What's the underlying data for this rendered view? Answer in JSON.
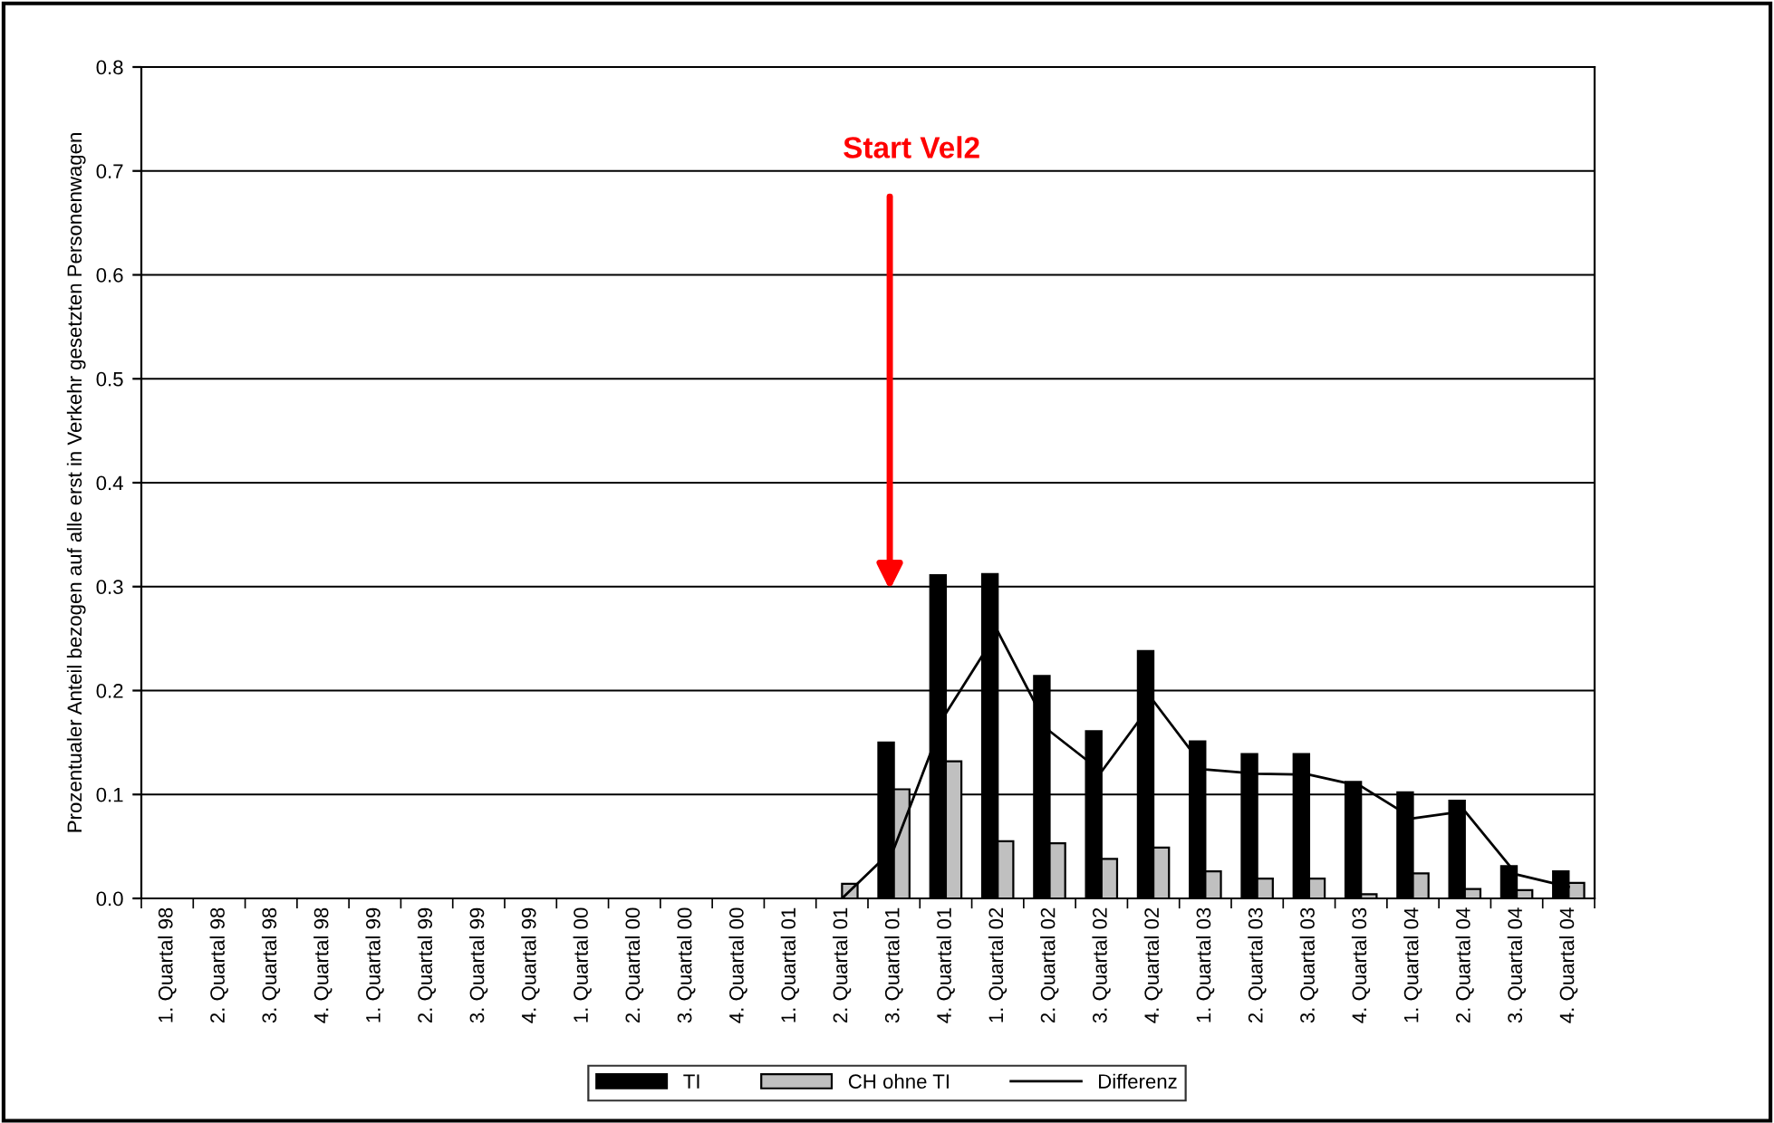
{
  "chart_data": {
    "type": "bar",
    "ylabel": "Prozentualer Anteil bezogen auf alle erst in Verkehr gesetzten Personenwagen",
    "categories": [
      "1. Quartal 98",
      "2. Quartal 98",
      "3. Quartal 98",
      "4. Quartal 98",
      "1. Quartal 99",
      "2. Quartal 99",
      "3. Quartal 99",
      "4. Quartal 99",
      "1. Quartal 00",
      "2. Quartal 00",
      "3. Quartal 00",
      "4. Quartal 00",
      "1. Quartal 01",
      "2. Quartal 01",
      "3. Quartal 01",
      "4. Quartal 01",
      "1. Quartal 02",
      "2. Quartal 02",
      "3. Quartal 02",
      "4. Quartal 02",
      "1. Quartal 03",
      "2. Quartal 03",
      "3. Quartal 03",
      "4. Quartal 03",
      "1. Quartal 04",
      "2. Quartal 04",
      "3. Quartal 04",
      "4. Quartal 04"
    ],
    "series": [
      {
        "name": "TI",
        "color": "#000000",
        "values": [
          null,
          null,
          null,
          null,
          null,
          null,
          null,
          null,
          null,
          null,
          null,
          null,
          null,
          null,
          0.15,
          0.311,
          0.312,
          0.214,
          0.161,
          0.238,
          0.151,
          0.139,
          0.139,
          0.112,
          0.102,
          0.094,
          0.031,
          0.026
        ]
      },
      {
        "name": "CH ohne TI",
        "color": "#c0c0c0",
        "values": [
          null,
          null,
          null,
          null,
          null,
          null,
          null,
          null,
          null,
          null,
          null,
          null,
          null,
          0.014,
          0.105,
          0.132,
          0.055,
          0.053,
          0.038,
          0.049,
          0.026,
          0.019,
          0.019,
          0.004,
          0.024,
          0.009,
          0.008,
          0.015
        ]
      },
      {
        "name": "Differenz",
        "type": "line",
        "color": "#000000",
        "values": [
          null,
          null,
          null,
          null,
          null,
          null,
          null,
          null,
          null,
          null,
          null,
          null,
          null,
          0,
          0.048,
          0.178,
          0.257,
          0.161,
          0.122,
          0.19,
          0.124,
          0.12,
          0.119,
          0.108,
          0.077,
          0.084,
          0.023,
          0.011
        ]
      }
    ],
    "ylim": [
      0,
      0.8
    ],
    "yticks": [
      {
        "value": 0,
        "label": "0.0"
      },
      {
        "value": 0.1,
        "label": "0.1"
      },
      {
        "value": 0.2,
        "label": "0.2"
      },
      {
        "value": 0.3,
        "label": "0.3"
      },
      {
        "value": 0.4,
        "label": "0.4"
      },
      {
        "value": 0.5,
        "label": "0.5"
      },
      {
        "value": 0.6,
        "label": "0.6"
      },
      {
        "value": 0.7,
        "label": "0.7"
      },
      {
        "value": 0.8,
        "label": "0.8"
      }
    ],
    "grid": "y",
    "legend": "bottom",
    "marker": "none",
    "line_style": "solid",
    "annotations": [
      "Start Vel2"
    ]
  }
}
